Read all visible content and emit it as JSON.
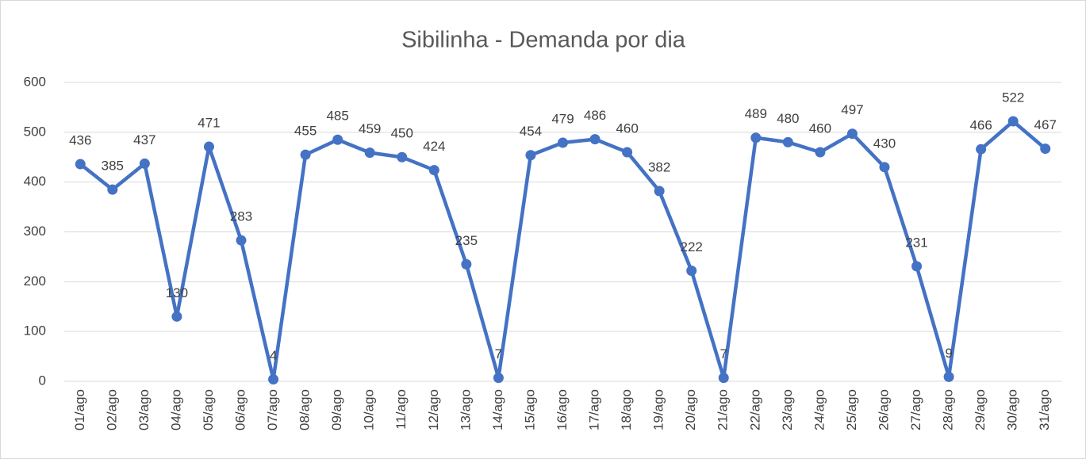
{
  "chart_data": {
    "type": "line",
    "title": "Sibilinha - Demanda por dia",
    "categories": [
      "01/ago",
      "02/ago",
      "03/ago",
      "04/ago",
      "05/ago",
      "06/ago",
      "07/ago",
      "08/ago",
      "09/ago",
      "10/ago",
      "11/ago",
      "12/ago",
      "13/ago",
      "14/ago",
      "15/ago",
      "16/ago",
      "17/ago",
      "18/ago",
      "19/ago",
      "20/ago",
      "21/ago",
      "22/ago",
      "23/ago",
      "24/ago",
      "25/ago",
      "26/ago",
      "27/ago",
      "28/ago",
      "29/ago",
      "30/ago",
      "31/ago"
    ],
    "values": [
      436,
      385,
      437,
      130,
      471,
      283,
      4,
      455,
      485,
      459,
      450,
      424,
      235,
      7,
      454,
      479,
      486,
      460,
      382,
      222,
      7,
      489,
      480,
      460,
      497,
      430,
      231,
      9,
      466,
      522,
      467
    ],
    "color": "#4472c4",
    "ylim": [
      0,
      600
    ],
    "yticks": [
      0,
      100,
      200,
      300,
      400,
      500,
      600
    ],
    "grid": true
  }
}
